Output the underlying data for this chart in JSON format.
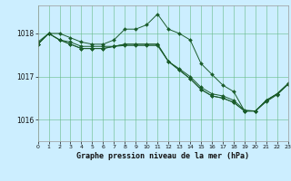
{
  "title": "Graphe pression niveau de la mer (hPa)",
  "bg_color": "#cceeff",
  "grid_color": "#66bb88",
  "line_color": "#1a5c2a",
  "xlim": [
    0,
    23
  ],
  "ylim": [
    1015.5,
    1018.65
  ],
  "yticks": [
    1016,
    1017,
    1018
  ],
  "xticks": [
    0,
    1,
    2,
    3,
    4,
    5,
    6,
    7,
    8,
    9,
    10,
    11,
    12,
    13,
    14,
    15,
    16,
    17,
    18,
    19,
    20,
    21,
    22,
    23
  ],
  "series": [
    [
      1017.8,
      1018.0,
      1018.0,
      1017.9,
      1017.8,
      1017.75,
      1017.75,
      1017.85,
      1018.1,
      1018.1,
      1018.2,
      1018.45,
      1018.1,
      1018.0,
      1017.85,
      1017.3,
      1017.05,
      1016.8,
      1016.65,
      1016.2,
      1016.2,
      1016.45,
      1016.6,
      1016.82
    ],
    [
      1017.75,
      1018.0,
      1017.85,
      1017.75,
      1017.65,
      1017.65,
      1017.65,
      1017.7,
      1017.75,
      1017.75,
      1017.75,
      1017.75,
      1017.35,
      1017.15,
      1016.95,
      1016.7,
      1016.55,
      1016.5,
      1016.4,
      1016.2,
      1016.2,
      1016.42,
      1016.58,
      1016.82
    ],
    [
      1017.75,
      1018.0,
      1017.85,
      1017.75,
      1017.65,
      1017.65,
      1017.65,
      1017.7,
      1017.75,
      1017.75,
      1017.75,
      1017.75,
      1017.35,
      1017.15,
      1016.95,
      1016.7,
      1016.55,
      1016.5,
      1016.4,
      1016.2,
      1016.2,
      1016.44,
      1016.6,
      1016.83
    ],
    [
      1017.75,
      1018.0,
      1017.85,
      1017.8,
      1017.7,
      1017.7,
      1017.7,
      1017.7,
      1017.72,
      1017.72,
      1017.72,
      1017.72,
      1017.35,
      1017.18,
      1017.0,
      1016.75,
      1016.6,
      1016.55,
      1016.45,
      1016.22,
      1016.2,
      1016.45,
      1016.6,
      1016.84
    ]
  ]
}
